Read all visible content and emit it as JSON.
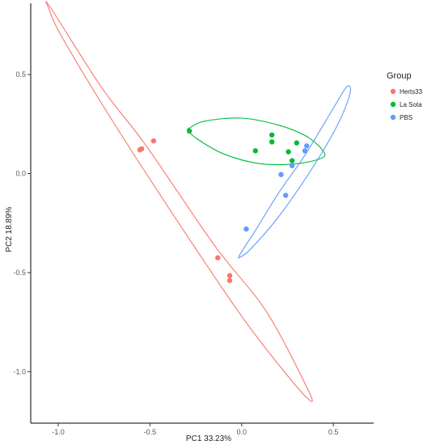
{
  "chart_data": {
    "type": "scatter",
    "xlabel": "PC1 33.23%",
    "ylabel": "PC2 18.89%",
    "xlim": [
      -1.15,
      0.72
    ],
    "ylim": [
      -1.26,
      0.86
    ],
    "x_ticks": [
      -1.0,
      -0.5,
      0.0,
      0.5
    ],
    "x_tick_labels": [
      "-1.0",
      "-0.5",
      "0.0",
      "0.5"
    ],
    "y_ticks": [
      0.5,
      0.0,
      -0.5,
      -1.0
    ],
    "y_tick_labels": [
      "0.5",
      "0.0",
      "-0.5",
      "-1.0"
    ],
    "grid": false,
    "legend": {
      "title": "Group",
      "position": "right"
    },
    "series": [
      {
        "name": "Herts33",
        "color": "#F8766D",
        "points": [
          {
            "x": -0.555,
            "y": 0.12
          },
          {
            "x": -0.545,
            "y": 0.125
          },
          {
            "x": -0.48,
            "y": 0.165
          },
          {
            "x": -0.13,
            "y": -0.425
          },
          {
            "x": -0.065,
            "y": -0.515
          },
          {
            "x": -0.065,
            "y": -0.54
          }
        ],
        "ellipse": [
          {
            "x": -1.04,
            "y": 0.835
          },
          {
            "x": -0.76,
            "y": 0.43
          },
          {
            "x": -0.52,
            "y": 0.14
          },
          {
            "x": -0.15,
            "y": -0.36
          },
          {
            "x": 0.13,
            "y": -0.69
          },
          {
            "x": 0.34,
            "y": -1.05
          },
          {
            "x": 0.38,
            "y": -1.15
          },
          {
            "x": 0.25,
            "y": -1.02
          },
          {
            "x": 0.0,
            "y": -0.72
          },
          {
            "x": -0.35,
            "y": -0.24
          },
          {
            "x": -0.7,
            "y": 0.26
          },
          {
            "x": -0.98,
            "y": 0.69
          },
          {
            "x": -1.05,
            "y": 0.83
          }
        ]
      },
      {
        "name": "La Sota",
        "color": "#00BA38",
        "points": [
          {
            "x": -0.285,
            "y": 0.215
          },
          {
            "x": 0.075,
            "y": 0.115
          },
          {
            "x": 0.165,
            "y": 0.195
          },
          {
            "x": 0.165,
            "y": 0.16
          },
          {
            "x": 0.255,
            "y": 0.11
          },
          {
            "x": 0.3,
            "y": 0.155
          },
          {
            "x": 0.275,
            "y": 0.065
          }
        ],
        "ellipse": [
          {
            "x": -0.285,
            "y": 0.23
          },
          {
            "x": -0.2,
            "y": 0.265
          },
          {
            "x": 0.0,
            "y": 0.28
          },
          {
            "x": 0.2,
            "y": 0.245
          },
          {
            "x": 0.35,
            "y": 0.19
          },
          {
            "x": 0.44,
            "y": 0.12
          },
          {
            "x": 0.44,
            "y": 0.08
          },
          {
            "x": 0.3,
            "y": 0.05
          },
          {
            "x": 0.1,
            "y": 0.05
          },
          {
            "x": -0.1,
            "y": 0.1
          },
          {
            "x": -0.25,
            "y": 0.18
          },
          {
            "x": -0.29,
            "y": 0.22
          }
        ]
      },
      {
        "name": "PBS",
        "color": "#619CFF",
        "points": [
          {
            "x": 0.025,
            "y": -0.28
          },
          {
            "x": 0.215,
            "y": -0.005
          },
          {
            "x": 0.24,
            "y": -0.11
          },
          {
            "x": 0.275,
            "y": 0.04
          },
          {
            "x": 0.345,
            "y": 0.115
          },
          {
            "x": 0.355,
            "y": 0.14
          }
        ],
        "ellipse": [
          {
            "x": -0.01,
            "y": -0.41
          },
          {
            "x": 0.08,
            "y": -0.28
          },
          {
            "x": 0.2,
            "y": -0.1
          },
          {
            "x": 0.35,
            "y": 0.1
          },
          {
            "x": 0.5,
            "y": 0.33
          },
          {
            "x": 0.575,
            "y": 0.44
          },
          {
            "x": 0.59,
            "y": 0.4
          },
          {
            "x": 0.52,
            "y": 0.24
          },
          {
            "x": 0.38,
            "y": 0.02
          },
          {
            "x": 0.2,
            "y": -0.22
          },
          {
            "x": 0.05,
            "y": -0.38
          },
          {
            "x": -0.005,
            "y": -0.42
          }
        ]
      }
    ]
  }
}
